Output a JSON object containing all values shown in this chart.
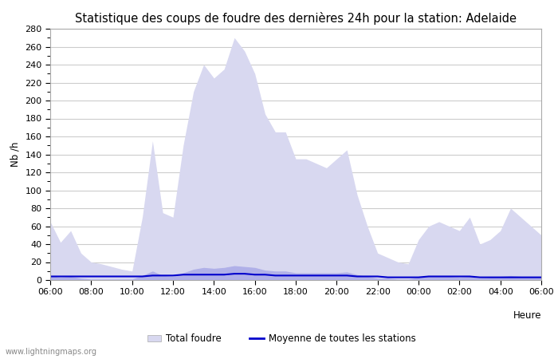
{
  "title": "Statistique des coups de foudre des dernières 24h pour la station: Adelaide",
  "xlabel": "Heure",
  "ylabel": "Nb /h",
  "watermark": "www.lightningmaps.org",
  "ylim": [
    0,
    280
  ],
  "yticks": [
    0,
    20,
    40,
    60,
    80,
    100,
    120,
    140,
    160,
    180,
    200,
    220,
    240,
    260,
    280
  ],
  "xtick_labels": [
    "06:00",
    "08:00",
    "10:00",
    "12:00",
    "14:00",
    "16:00",
    "18:00",
    "20:00",
    "22:00",
    "00:00",
    "02:00",
    "04:00",
    "06:00"
  ],
  "background_color": "#ffffff",
  "grid_color": "#cccccc",
  "fill_total_color": "#d8d8f0",
  "fill_station_color": "#b0b0e8",
  "line_mean_color": "#0000cc",
  "title_fontsize": 10.5,
  "label_fontsize": 8.5,
  "tick_fontsize": 8,
  "x_hours": [
    6,
    6.5,
    7,
    7.5,
    8,
    8.5,
    9,
    9.5,
    10,
    10.5,
    11,
    11.5,
    12,
    12.5,
    13,
    13.5,
    14,
    14.5,
    15,
    15.5,
    16,
    16.5,
    17,
    17.5,
    18,
    18.5,
    19,
    19.5,
    20,
    20.5,
    21,
    21.5,
    22,
    22.5,
    23,
    23.5,
    24,
    24.5,
    25,
    25.5,
    26,
    26.5,
    27,
    27.5,
    28,
    28.5,
    29,
    29.5,
    30
  ],
  "total_foudre": [
    65,
    42,
    55,
    30,
    20,
    18,
    15,
    12,
    10,
    70,
    155,
    75,
    70,
    150,
    210,
    240,
    225,
    235,
    270,
    255,
    230,
    185,
    165,
    165,
    135,
    135,
    130,
    125,
    135,
    145,
    95,
    60,
    30,
    25,
    20,
    18,
    45,
    60,
    65,
    60,
    55,
    70,
    40,
    45,
    55,
    80,
    70,
    60,
    50
  ],
  "station_foudre": [
    5,
    3,
    4,
    2,
    1,
    1,
    1,
    1,
    1,
    5,
    10,
    5,
    4,
    8,
    12,
    14,
    13,
    14,
    16,
    15,
    14,
    11,
    10,
    10,
    8,
    8,
    8,
    8,
    8,
    9,
    6,
    4,
    2,
    2,
    1,
    1,
    3,
    4,
    4,
    4,
    3,
    4,
    2,
    3,
    4,
    5,
    4,
    4,
    3
  ],
  "mean_line": [
    4,
    4,
    4,
    4,
    4,
    4,
    4,
    4,
    4,
    4,
    5,
    5,
    5,
    6,
    6,
    6,
    6,
    6,
    7,
    7,
    6,
    6,
    5,
    5,
    5,
    5,
    5,
    5,
    5,
    5,
    4,
    4,
    4,
    3,
    3,
    3,
    3,
    4,
    4,
    4,
    4,
    4,
    3,
    3,
    3,
    3,
    3,
    3,
    3
  ]
}
